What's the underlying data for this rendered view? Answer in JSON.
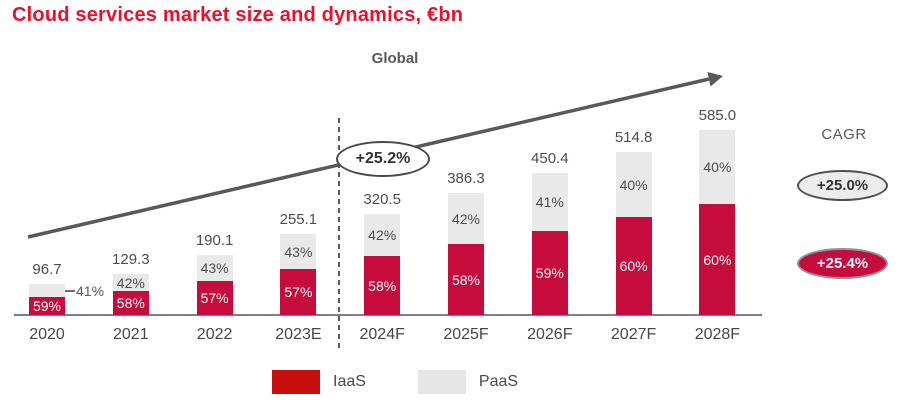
{
  "title": "Cloud services market size and dynamics, €bn",
  "chart_label": "Global",
  "growth_callout": "+25.2%",
  "cagr": {
    "heading": "CAGR",
    "paas": "+25.0%",
    "iaas": "+25.4%"
  },
  "legend": [
    {
      "label": "IaaS",
      "color": "#c80d0d"
    },
    {
      "label": "PaaS",
      "color": "#e6e6e6"
    }
  ],
  "colors": {
    "title_red": "#e8112d",
    "iaas_bar": "#c60c3d",
    "paas_bar": "#e9e9e9",
    "arrow_gray": "#595959",
    "text_gray": "#4d4d4d"
  },
  "chart_data": {
    "type": "bar",
    "stacked": true,
    "unit": "€bn",
    "title": "Cloud services market size and dynamics, €bn",
    "region_label": "Global",
    "categories": [
      "2020",
      "2021",
      "2022",
      "2023E",
      "2024F",
      "2025F",
      "2026F",
      "2027F",
      "2028F"
    ],
    "totals": [
      96.7,
      129.3,
      190.1,
      255.1,
      320.5,
      386.3,
      450.4,
      514.8,
      585.0
    ],
    "series": [
      {
        "name": "IaaS",
        "share_pct": [
          59,
          58,
          57,
          57,
          58,
          58,
          59,
          60,
          60
        ],
        "color": "#c60c3d"
      },
      {
        "name": "PaaS",
        "share_pct": [
          41,
          42,
          43,
          43,
          42,
          42,
          41,
          40,
          40
        ],
        "color": "#e9e9e9"
      }
    ],
    "annotations": {
      "trend_arrow_cagr": "+25.2%",
      "cagr_paas": "+25.0%",
      "cagr_iaas": "+25.4%",
      "forecast_divider_after": "2023E"
    },
    "ylim": [
      0,
      650
    ],
    "grid": false,
    "legend_position": "bottom"
  }
}
